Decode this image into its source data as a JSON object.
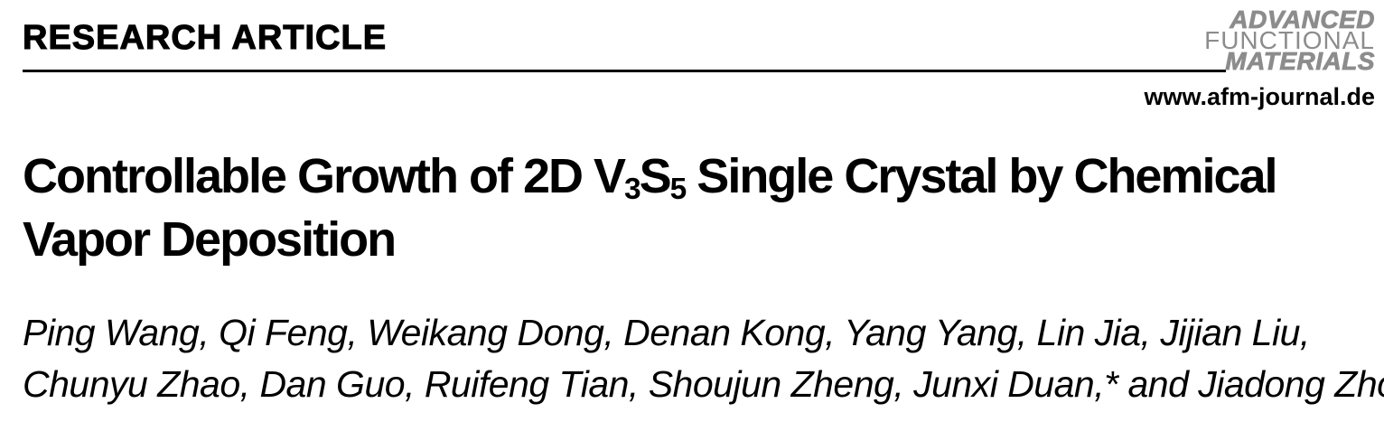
{
  "header": {
    "article_type": "RESEARCH ARTICLE",
    "logo": {
      "line1": "ADVANCED",
      "line2": "FUNCTIONAL",
      "line3": "MATERIALS"
    },
    "journal_url": "www.afm-journal.de"
  },
  "article": {
    "title": {
      "line1_part1": "Controllable Growth of 2D V",
      "line1_sub1": "3",
      "line1_part2": "S",
      "line1_sub2": "5",
      "line1_part3": " Single Crystal by Chemical",
      "line2": "Vapor Deposition"
    },
    "authors": {
      "line1": "Ping Wang, Qi Feng, Weikang Dong, Denan Kong, Yang Yang, Lin Jia, Jijian Liu,",
      "line2": "Chunyu Zhao, Dan Guo, Ruifeng Tian, Shoujun Zheng, Junxi Duan,* and Jiadong Zhou*"
    }
  },
  "colors": {
    "logo_gray": "#8c8c8c",
    "text_black": "#000000",
    "background": "#ffffff"
  }
}
